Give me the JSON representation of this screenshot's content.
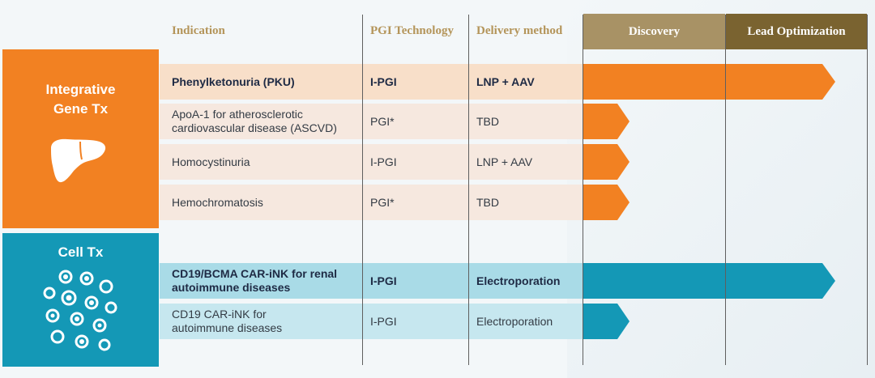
{
  "headers": {
    "indication": "Indication",
    "technology": "PGI Technology",
    "delivery": "Delivery method"
  },
  "stages": {
    "discovery": "Discovery",
    "lead_optimization": "Lead Optimization"
  },
  "categories": {
    "gene": {
      "title_line1": "Integrative",
      "title_line2": "Gene Tx",
      "icon": "liver-icon"
    },
    "cell": {
      "title": "Cell Tx",
      "icon": "cells-icon"
    }
  },
  "rows": [
    {
      "indication_line1": "Phenylketonuria (PKU)",
      "indication_line2": "",
      "technology": "I-PGI",
      "delivery": "LNP + AAV",
      "progress": "Lead Optimization",
      "highlight": true
    },
    {
      "indication_line1": "ApoA-1 for atherosclerotic",
      "indication_line2": "cardiovascular disease (ASCVD)",
      "technology": "PGI*",
      "delivery": "TBD",
      "progress": "Discovery",
      "highlight": false
    },
    {
      "indication_line1": "Homocystinuria",
      "indication_line2": "",
      "technology": "I-PGI",
      "delivery": "LNP + AAV",
      "progress": "Discovery",
      "highlight": false
    },
    {
      "indication_line1": "Hemochromatosis",
      "indication_line2": "",
      "technology": "PGI*",
      "delivery": "TBD",
      "progress": "Discovery",
      "highlight": false
    },
    {
      "indication_line1": "CD19/BCMA CAR-iNK for renal",
      "indication_line2": "autoimmune diseases",
      "technology": "I-PGI",
      "delivery": "Electroporation",
      "progress": "Lead Optimization",
      "highlight": true
    },
    {
      "indication_line1": "CD19 CAR-iNK for",
      "indication_line2": "autoimmune diseases",
      "technology": "I-PGI",
      "delivery": "Electroporation",
      "progress": "Discovery",
      "highlight": false
    }
  ],
  "colors": {
    "orange": "#f28122",
    "teal": "#1498b6",
    "gold_light": "#a89265",
    "gold_dark": "#7a6330",
    "header_text": "#b4955a",
    "gene_row_strong": "#f8dfc9",
    "gene_row_light": "#f6e8df",
    "cell_row_strong": "#a9dbe7",
    "cell_row_light": "#c6e7ef"
  }
}
